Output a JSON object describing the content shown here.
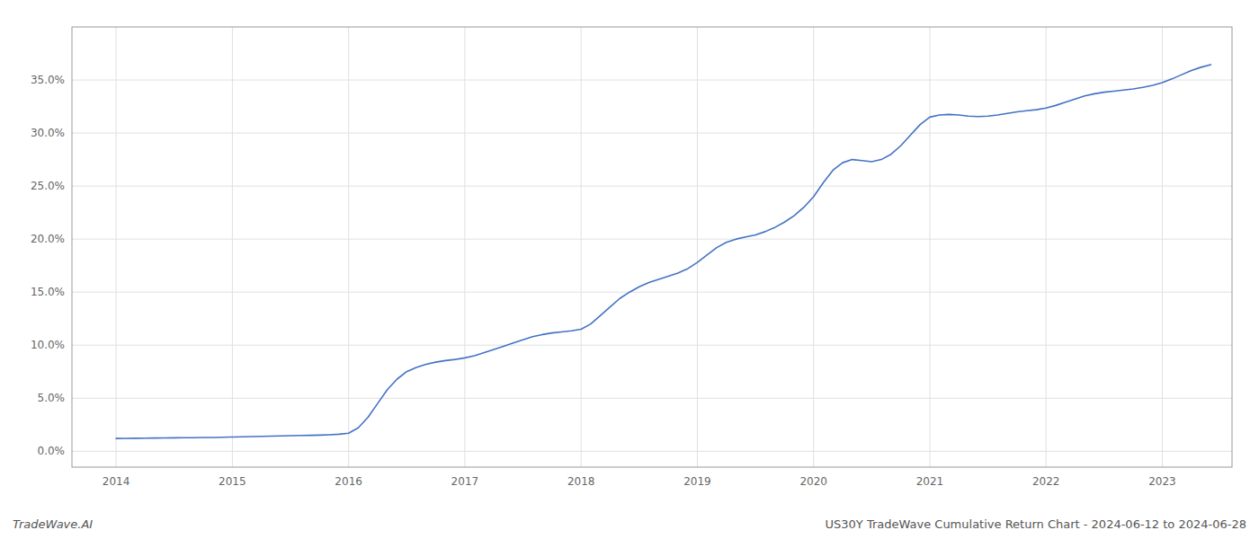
{
  "chart_data": {
    "type": "line",
    "title": "US30Y TradeWave Cumulative Return Chart - 2024-06-12 to 2024-06-28",
    "annotations": [
      "TradeWave.AI"
    ],
    "color": "#4472c4",
    "grid": true,
    "x": [
      2014.0,
      2014.083,
      2014.167,
      2014.25,
      2014.333,
      2014.417,
      2014.5,
      2014.583,
      2014.667,
      2014.75,
      2014.833,
      2014.917,
      2015.0,
      2015.083,
      2015.167,
      2015.25,
      2015.333,
      2015.417,
      2015.5,
      2015.583,
      2015.667,
      2015.75,
      2015.833,
      2015.917,
      2016.0,
      2016.083,
      2016.167,
      2016.25,
      2016.333,
      2016.417,
      2016.5,
      2016.583,
      2016.667,
      2016.75,
      2016.833,
      2016.917,
      2017.0,
      2017.083,
      2017.167,
      2017.25,
      2017.333,
      2017.417,
      2017.5,
      2017.583,
      2017.667,
      2017.75,
      2017.833,
      2017.917,
      2018.0,
      2018.083,
      2018.167,
      2018.25,
      2018.333,
      2018.417,
      2018.5,
      2018.583,
      2018.667,
      2018.75,
      2018.833,
      2018.917,
      2019.0,
      2019.083,
      2019.167,
      2019.25,
      2019.333,
      2019.417,
      2019.5,
      2019.583,
      2019.667,
      2019.75,
      2019.833,
      2019.917,
      2020.0,
      2020.083,
      2020.167,
      2020.25,
      2020.333,
      2020.417,
      2020.5,
      2020.583,
      2020.667,
      2020.75,
      2020.833,
      2020.917,
      2021.0,
      2021.083,
      2021.167,
      2021.25,
      2021.333,
      2021.417,
      2021.5,
      2021.583,
      2021.667,
      2021.75,
      2021.833,
      2021.917,
      2022.0,
      2022.083,
      2022.167,
      2022.25,
      2022.333,
      2022.417,
      2022.5,
      2022.583,
      2022.667,
      2022.75,
      2022.833,
      2022.917,
      2023.0,
      2023.083,
      2023.167,
      2023.25,
      2023.333,
      2023.417
    ],
    "values": [
      1.2,
      1.21,
      1.22,
      1.23,
      1.24,
      1.25,
      1.26,
      1.27,
      1.28,
      1.29,
      1.3,
      1.32,
      1.34,
      1.36,
      1.38,
      1.4,
      1.42,
      1.44,
      1.46,
      1.48,
      1.5,
      1.52,
      1.55,
      1.6,
      1.7,
      2.2,
      3.2,
      4.5,
      5.8,
      6.8,
      7.5,
      7.9,
      8.2,
      8.4,
      8.55,
      8.65,
      8.8,
      9.0,
      9.3,
      9.6,
      9.9,
      10.2,
      10.5,
      10.8,
      11.0,
      11.15,
      11.25,
      11.35,
      11.5,
      12.0,
      12.8,
      13.6,
      14.4,
      15.0,
      15.5,
      15.9,
      16.2,
      16.5,
      16.8,
      17.2,
      17.8,
      18.5,
      19.2,
      19.7,
      20.0,
      20.2,
      20.4,
      20.7,
      21.1,
      21.6,
      22.2,
      23.0,
      24.0,
      25.3,
      26.5,
      27.2,
      27.5,
      27.4,
      27.3,
      27.5,
      28.0,
      28.8,
      29.8,
      30.8,
      31.5,
      31.7,
      31.75,
      31.7,
      31.6,
      31.55,
      31.6,
      31.7,
      31.85,
      32.0,
      32.1,
      32.2,
      32.35,
      32.6,
      32.9,
      33.2,
      33.5,
      33.7,
      33.85,
      33.95,
      34.05,
      34.15,
      34.3,
      34.5,
      34.75,
      35.1,
      35.5,
      35.9,
      36.2,
      36.45
    ],
    "xlim": [
      2013.62,
      2023.6
    ],
    "ylim": [
      -1.5,
      40.0
    ],
    "xticks": [
      2014,
      2015,
      2016,
      2017,
      2018,
      2019,
      2020,
      2021,
      2022,
      2023
    ],
    "yticks": [
      {
        "value": 0.0,
        "label": "0.0%"
      },
      {
        "value": 5.0,
        "label": "5.0%"
      },
      {
        "value": 10.0,
        "label": "10.0%"
      },
      {
        "value": 15.0,
        "label": "15.0%"
      },
      {
        "value": 20.0,
        "label": "20.0%"
      },
      {
        "value": 25.0,
        "label": "25.0%"
      },
      {
        "value": 30.0,
        "label": "30.0%"
      },
      {
        "value": 35.0,
        "label": "35.0%"
      }
    ]
  }
}
